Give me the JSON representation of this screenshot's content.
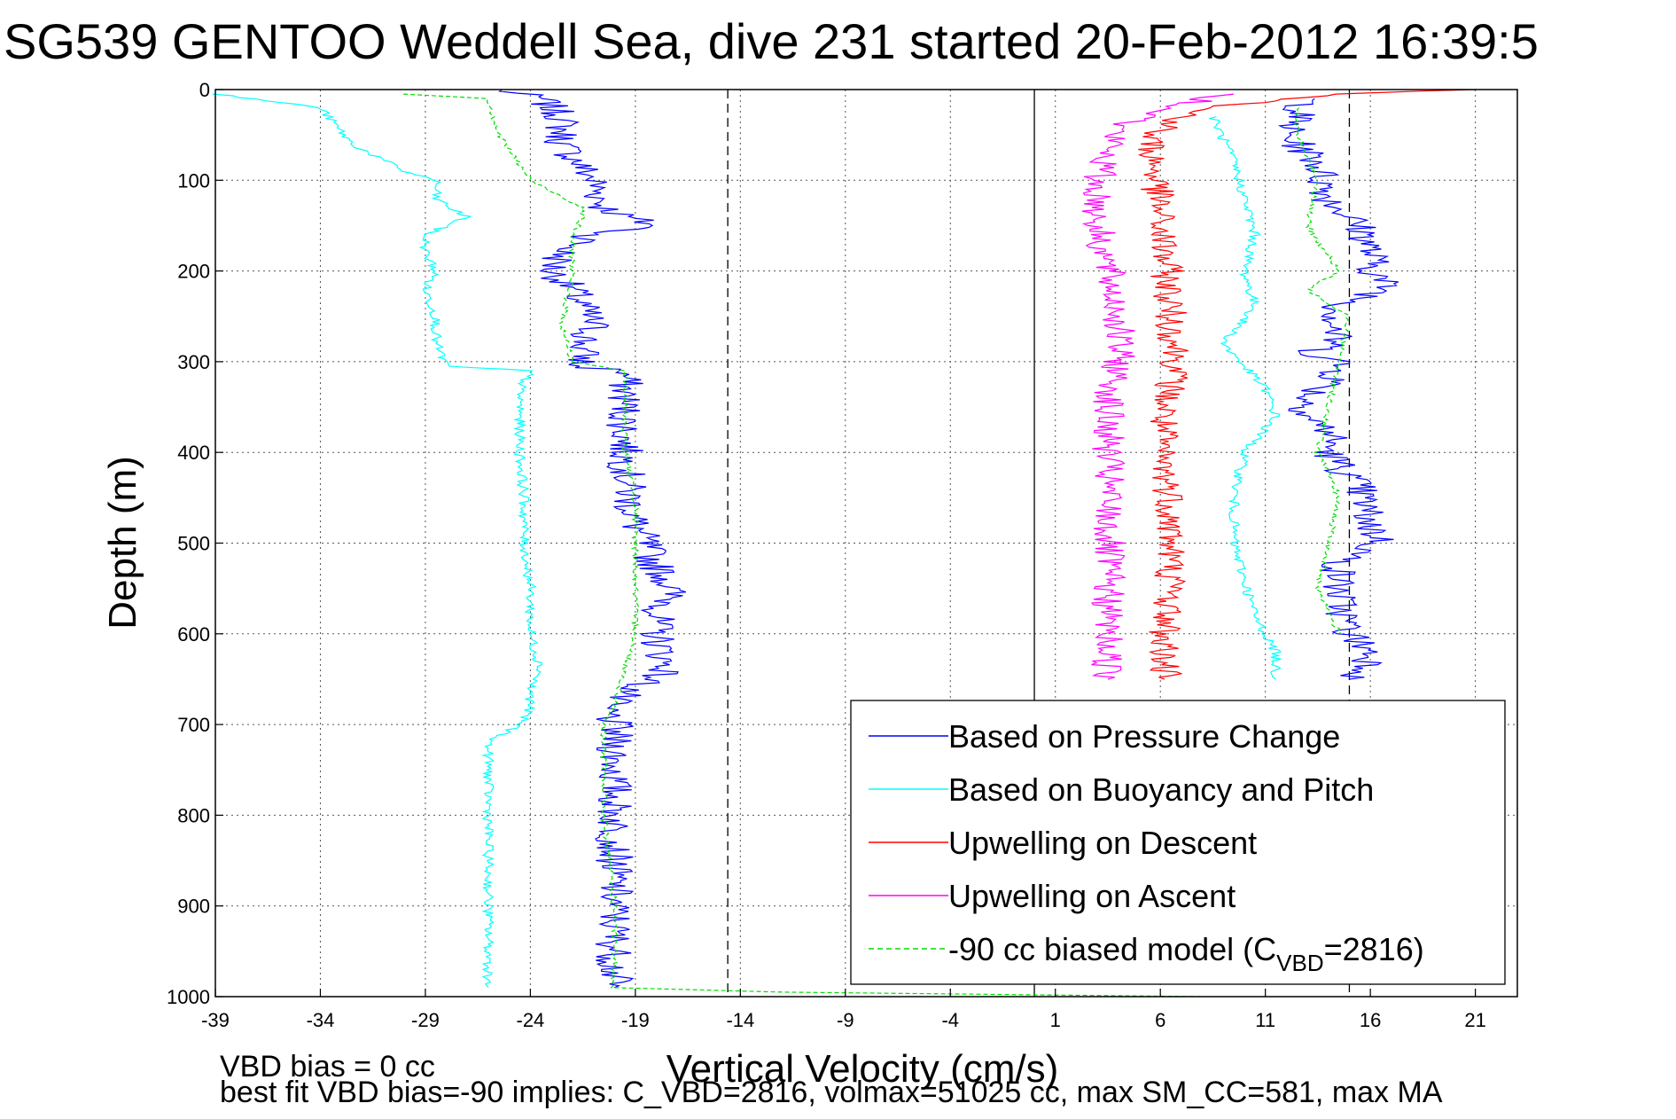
{
  "chart_data": {
    "type": "line",
    "title": "SG539 GENTOO Weddell Sea, dive 231 started 20-Feb-2012 16:39:5",
    "xlabel": "Vertical Velocity (cm/s)",
    "ylabel": "Depth (m)",
    "xlim": [
      -39,
      23
    ],
    "ylim": [
      0,
      1000
    ],
    "y_reversed": true,
    "xticks": [
      -39,
      -34,
      -29,
      -24,
      -19,
      -14,
      -9,
      -4,
      1,
      6,
      11,
      16,
      21
    ],
    "yticks": [
      0,
      100,
      200,
      300,
      400,
      500,
      600,
      700,
      800,
      900,
      1000
    ],
    "grid": true,
    "legend_position": "bottom-right",
    "reference_lines": [
      {
        "x": -14.6,
        "style": "dashed",
        "color": "#000000"
      },
      {
        "x": 0,
        "style": "solid",
        "color": "#000000"
      },
      {
        "x": 15,
        "style": "dashed",
        "color": "#000000"
      }
    ],
    "series": [
      {
        "name": "Based on Pressure Change",
        "color": "#0000ff",
        "style": "solid",
        "segments": [
          {
            "x": [
              -25.5,
              -23.5,
              -22.5,
              -22.5,
              -21,
              -20.5,
              -19.5,
              -18,
              -21,
              -22.5,
              -23,
              -22,
              -21.5,
              -21,
              -21.5,
              -21.5,
              -22,
              -19.5,
              -19.5,
              -19.5,
              -19.3,
              -19,
              -18.5,
              -18.2,
              -17.5,
              -17.3,
              -18,
              -18,
              -17.5,
              -19,
              -20.5,
              -20,
              -20,
              -20,
              -20,
              -20,
              -20,
              -20
            ],
            "y": [
              0,
              10,
              30,
              60,
              100,
              130,
              140,
              150,
              160,
              180,
              200,
              220,
              240,
              260,
              280,
              300,
              305,
              310,
              350,
              400,
              450,
              480,
              500,
              520,
              540,
              560,
              580,
              600,
              640,
              660,
              680,
              700,
              750,
              800,
              850,
              900,
              950,
              990
            ]
          },
          {
            "x": [
              13,
              12,
              13.5,
              14,
              15,
              15.8,
              16,
              16.2,
              16.8,
              14.5,
              14.3,
              14.3,
              13.2,
              14.5,
              14.3,
              13,
              13,
              14.2,
              14,
              15.5,
              16,
              16.5,
              14.5,
              14.5,
              15,
              16,
              16,
              15
            ],
            "y": [
              10,
              50,
              80,
              120,
              140,
              160,
              180,
              200,
              220,
              240,
              260,
              280,
              290,
              300,
              320,
              340,
              360,
              380,
              400,
              440,
              480,
              500,
              520,
              560,
              600,
              620,
              640,
              650
            ]
          }
        ]
      },
      {
        "name": "Based on Buoyancy and Pitch",
        "color": "#00ffff",
        "style": "solid",
        "segments": [
          {
            "x": [
              -39,
              -34,
              -32.5,
              -30,
              -28.5,
              -28.5,
              -27.5,
              -27,
              -29,
              -29,
              -28.5,
              -29,
              -28.5,
              -28.5,
              -28,
              -24,
              -24.5,
              -24.5,
              -24.5,
              -24.3,
              -24.3,
              -24,
              -24,
              -23.5,
              -24,
              -24,
              -24.5,
              -26,
              -26,
              -26,
              -26,
              -26
            ],
            "y": [
              5,
              20,
              60,
              90,
              100,
              120,
              135,
              140,
              160,
              180,
              200,
              220,
              250,
              280,
              305,
              310,
              330,
              360,
              400,
              450,
              500,
              550,
              600,
              640,
              660,
              680,
              700,
              720,
              800,
              850,
              900,
              990
            ]
          },
          {
            "x": [
              8.5,
              9.5,
              10,
              10.5,
              10,
              10.5,
              9,
              11,
              11.5,
              10,
              9.5,
              9.5,
              10,
              10.5,
              11.5,
              11.5
            ],
            "y": [
              30,
              80,
              120,
              160,
              200,
              240,
              280,
              330,
              360,
              400,
              450,
              500,
              540,
              580,
              620,
              650
            ]
          }
        ]
      },
      {
        "name": "Upwelling on Descent",
        "color": "#ff0000",
        "style": "solid",
        "segments": [
          {
            "x": [
              21,
              15,
              8,
              5.5,
              5.8,
              6,
              6.3,
              6.5,
              6.8,
              6.2,
              6,
              6.5,
              6.5,
              6.5,
              6.2,
              6.2
            ],
            "y": [
              0,
              5,
              20,
              50,
              100,
              150,
              200,
              250,
              300,
              350,
              400,
              450,
              500,
              550,
              600,
              650
            ]
          }
        ]
      },
      {
        "name": "Upwelling on Ascent",
        "color": "#ff00ff",
        "style": "solid",
        "segments": [
          {
            "x": [
              9,
              4,
              3,
              3,
              3.5,
              4,
              4,
              3.5,
              3.5,
              3.5,
              3.5,
              3.5,
              3.5,
              3.5
            ],
            "y": [
              5,
              40,
              100,
              150,
              200,
              250,
              300,
              350,
              400,
              450,
              500,
              550,
              600,
              650
            ]
          }
        ]
      },
      {
        "name": "-90 cc biased model (C_VBD=2816)",
        "color": "#00dd00",
        "style": "dashed",
        "segments": [
          {
            "x": [
              -30,
              -26,
              -25.5,
              -24,
              -21.5,
              -21.5,
              -22,
              -22,
              -22.5,
              -22,
              -19.5,
              -19.5,
              -19.5,
              -19,
              -19,
              -19,
              -20,
              -20.5,
              -20.5,
              -20.5,
              -20,
              -20,
              -12,
              8
            ],
            "y": [
              5,
              10,
              50,
              100,
              130,
              140,
              160,
              200,
              260,
              300,
              310,
              350,
              400,
              450,
              500,
              600,
              680,
              700,
              750,
              800,
              900,
              990,
              995,
              1000
            ]
          },
          {
            "x": [
              12.5,
              12.5,
              13.5,
              13,
              14.5,
              13,
              15,
              14.5,
              14,
              13.5,
              14.5,
              13.5,
              14.5
            ],
            "y": [
              20,
              50,
              100,
              150,
              200,
              220,
              250,
              300,
              350,
              400,
              450,
              550,
              600
            ]
          }
        ]
      }
    ],
    "legend": [
      {
        "label": "Based on Pressure Change",
        "color": "#0000ff",
        "style": "solid"
      },
      {
        "label": "Based on Buoyancy and Pitch",
        "color": "#00ffff",
        "style": "solid"
      },
      {
        "label": "Upwelling on Descent",
        "color": "#ff0000",
        "style": "solid"
      },
      {
        "label": "Upwelling on Ascent",
        "color": "#ff00ff",
        "style": "solid"
      },
      {
        "label_prefix": "-90 cc biased model (C",
        "label_sub": "VBD",
        "label_suffix": "=2816)",
        "color": "#00dd00",
        "style": "dashed"
      }
    ],
    "annotations": {
      "line1": "VBD bias = 0 cc",
      "line2": "best fit VBD bias=-90 implies: C_VBD=2816, volmax=51025 cc, max SM_CC=581, max MA"
    }
  }
}
